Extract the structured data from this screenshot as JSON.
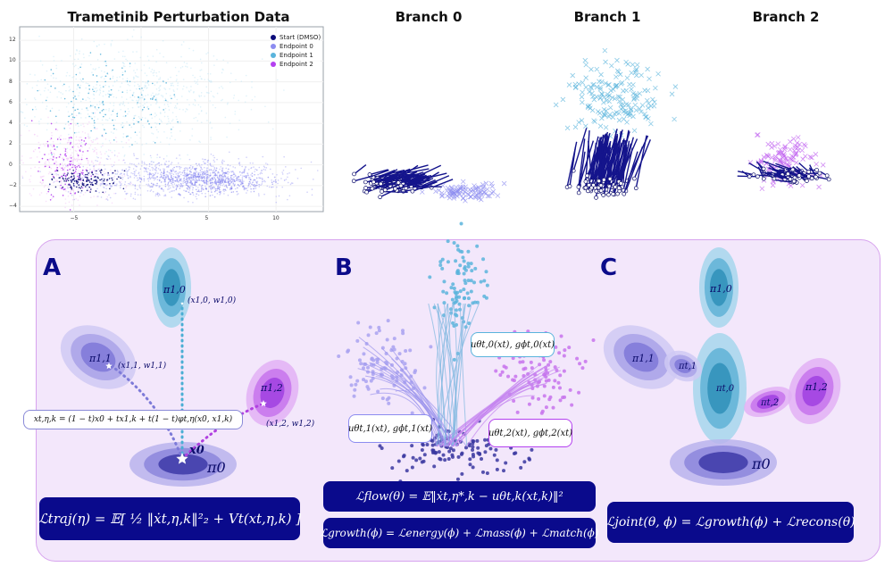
{
  "titles": {
    "main_plot": "Trametinib Perturbation Data",
    "branch0": "Branch 0",
    "branch1": "Branch 1",
    "branch2": "Branch 2"
  },
  "chart_data": {
    "type": "scatter",
    "title": "Trametinib Perturbation Data",
    "xlim": [
      -9,
      13.5
    ],
    "ylim": [
      -4.5,
      13.3
    ],
    "x_ticks": [
      "−5",
      "0",
      "5",
      "10"
    ],
    "y_ticks": [
      "12",
      "10",
      "8",
      "6",
      "4",
      "2",
      "0",
      "−2",
      "−4"
    ],
    "grid": true,
    "legend_position": "top-right",
    "legend": [
      {
        "name": "Start (DMSO)",
        "color": "#0c0c7a"
      },
      {
        "name": "Endpoint 0",
        "color": "#8c8cf0"
      },
      {
        "name": "Endpoint 1",
        "color": "#5ab4dc"
      },
      {
        "name": "Endpoint 2",
        "color": "#b440f0"
      }
    ]
  },
  "panels": {
    "A": {
      "letter": "A",
      "labels": {
        "pi10": "π1,0",
        "pi11": "π1,1",
        "pi12": "π1,2",
        "pi0": "π0",
        "x0": "x0",
        "xw10": "(x1,0, w1,0)",
        "xw11": "(x1,1, w1,1)",
        "xw12": "(x1,2, w1,2)"
      },
      "interp": "xt,η,k = (1 − t)x0 + tx1,k + t(1 − t)φt,η(x0, x1,k)",
      "loss": "ℒtraj(η) = 𝔼[ ½ ‖ẋt,η,k‖²₂ + Vt(xt,η,k) ]"
    },
    "B": {
      "letter": "B",
      "labels": {
        "u0": "uθt,0(xt), gϕt,0(xt)",
        "u1": "uθt,1(xt), gϕt,1(xt)",
        "u2": "uθt,2(xt), gϕt,2(xt)"
      },
      "loss_flow": "ℒflow(θ) = 𝔼‖ẋt,η*,k − uθt,k(xt,k)‖²",
      "loss_growth": "ℒgrowth(ϕ) = ℒenergy(ϕ) + ℒmass(ϕ) + ℒmatch(ϕ)"
    },
    "C": {
      "letter": "C",
      "labels": {
        "pi10": "π1,0",
        "pi11": "π1,1",
        "pi12": "π1,2",
        "pit0": "πt,0",
        "pit1": "πt,1",
        "pit2": "πt,2",
        "pi0": "π0"
      },
      "loss": "ℒjoint(θ, ϕ) = ℒgrowth(ϕ) + ℒrecons(θ)"
    }
  }
}
